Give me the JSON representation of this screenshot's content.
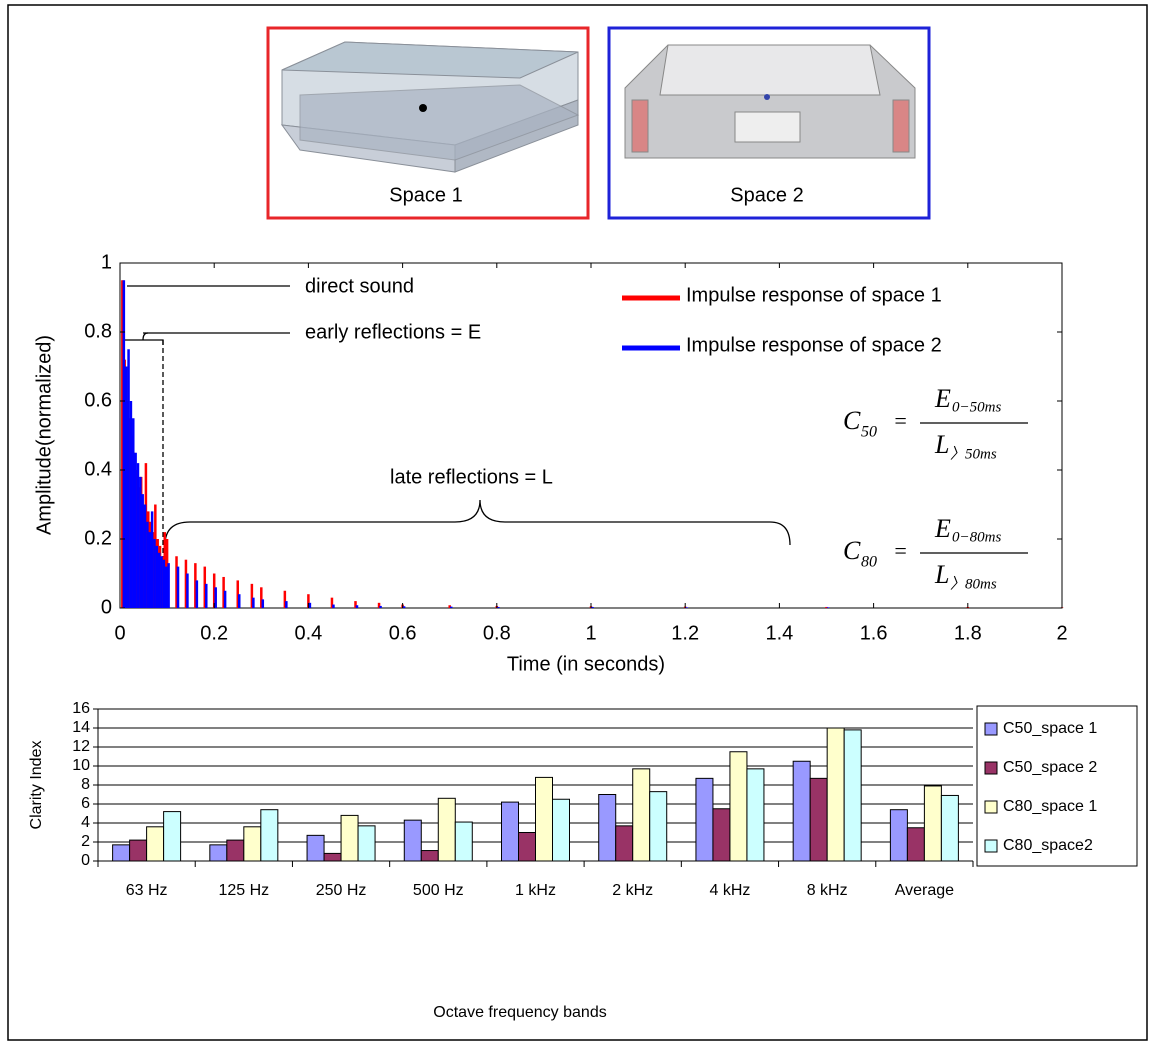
{
  "figure": {
    "panels": [
      {
        "label": "Space 1",
        "color": "#e8262a"
      },
      {
        "label": "Space 2",
        "color": "#1e22d8"
      }
    ]
  },
  "chart_data": [
    {
      "type": "stem",
      "xlabel": "Time (in seconds)",
      "ylabel": "Amplitude(normalized)",
      "x": [
        0.005,
        0.01,
        0.015,
        0.02,
        0.025,
        0.03,
        0.035,
        0.04,
        0.045,
        0.05,
        0.055,
        0.06,
        0.065,
        0.07,
        0.075,
        0.08,
        0.085,
        0.09,
        0.095,
        0.1,
        0.12,
        0.14,
        0.16,
        0.18,
        0.2,
        0.22,
        0.25,
        0.28,
        0.3,
        0.35,
        0.4,
        0.45,
        0.5,
        0.55,
        0.6,
        0.7,
        0.8,
        1.0,
        1.2,
        1.5,
        1.8,
        2.0
      ],
      "series": [
        {
          "name": "Impulse response of space 1",
          "color": "#ff0000",
          "values": [
            0.95,
            0.72,
            0.6,
            0.55,
            0.5,
            0.45,
            0.4,
            0.35,
            0.38,
            0.3,
            0.42,
            0.28,
            0.25,
            0.22,
            0.3,
            0.2,
            0.18,
            0.15,
            0.22,
            0.2,
            0.15,
            0.14,
            0.13,
            0.12,
            0.1,
            0.09,
            0.08,
            0.07,
            0.06,
            0.05,
            0.04,
            0.03,
            0.02,
            0.015,
            0.01,
            0.008,
            0.006,
            0.005,
            0.004,
            0.003,
            0.003,
            0.002
          ]
        },
        {
          "name": "Impulse response of space 2",
          "color": "#0000ff",
          "values": [
            0.95,
            0.7,
            0.75,
            0.6,
            0.55,
            0.45,
            0.42,
            0.38,
            0.33,
            0.3,
            0.25,
            0.22,
            0.28,
            0.2,
            0.18,
            0.16,
            0.15,
            0.14,
            0.12,
            0.13,
            0.12,
            0.1,
            0.08,
            0.07,
            0.06,
            0.05,
            0.04,
            0.03,
            0.025,
            0.02,
            0.015,
            0.01,
            0.008,
            0.006,
            0.005,
            0.004,
            0.003,
            0.003,
            0.002,
            0.002,
            null,
            null
          ]
        }
      ],
      "xlim": [
        0,
        2
      ],
      "xticks": [
        0,
        0.2,
        0.4,
        0.6,
        0.8,
        1,
        1.2,
        1.4,
        1.6,
        1.8,
        2
      ],
      "ylim": [
        0,
        1
      ],
      "yticks": [
        0,
        0.2,
        0.4,
        0.6,
        0.8,
        1
      ],
      "annotations": [
        "direct sound",
        "early reflections = E",
        "late reflections = L"
      ],
      "formulas": [
        {
          "symbol": "C",
          "subscript": "50",
          "operator": "=",
          "numerator": "E",
          "numerator_subscript": "0−50ms",
          "denominator": "L",
          "denominator_subscript": "〉50ms"
        },
        {
          "symbol": "C",
          "subscript": "80",
          "operator": "=",
          "numerator": "E",
          "numerator_subscript": "0−80ms",
          "denominator": "L",
          "denominator_subscript": "〉80ms"
        }
      ]
    },
    {
      "type": "bar",
      "xlabel": "Octave frequency bands",
      "ylabel": "Clarity Index",
      "categories": [
        "63 Hz",
        "125 Hz",
        "250 Hz",
        "500 Hz",
        "1 kHz",
        "2 kHz",
        "4 kHz",
        "8 kHz",
        "Average"
      ],
      "series": [
        {
          "name": "C50_space 1",
          "color": "#9999ff",
          "values": [
            1.7,
            1.7,
            2.7,
            4.3,
            6.2,
            7.0,
            8.7,
            10.5,
            5.4
          ]
        },
        {
          "name": "C50_space 2",
          "color": "#993366",
          "values": [
            2.2,
            2.2,
            0.8,
            1.1,
            3.0,
            3.7,
            5.5,
            8.7,
            3.5
          ]
        },
        {
          "name": "C80_space 1",
          "color": "#ffffcc",
          "values": [
            3.6,
            3.6,
            4.8,
            6.6,
            8.8,
            9.7,
            11.5,
            14.0,
            7.9
          ]
        },
        {
          "name": "C80_space2",
          "color": "#ccffff",
          "values": [
            5.2,
            5.4,
            3.7,
            4.1,
            6.5,
            7.3,
            9.7,
            13.8,
            6.9
          ]
        }
      ],
      "ylim": [
        0,
        16
      ],
      "yticks": [
        0,
        2,
        4,
        6,
        8,
        10,
        12,
        14,
        16
      ],
      "grid": true
    }
  ]
}
